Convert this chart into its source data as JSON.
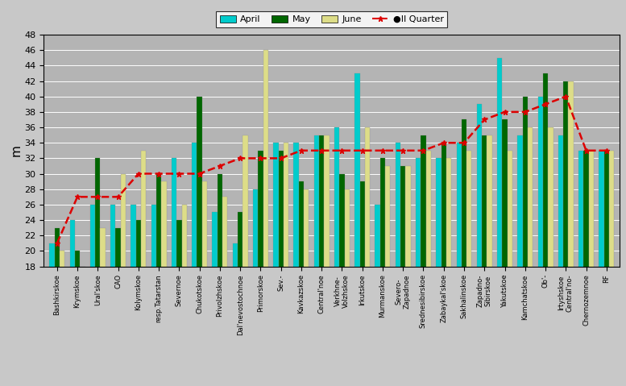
{
  "categories": [
    "Bashkirskoe",
    "Krymskoe",
    "Ural'skoe",
    "CAO",
    "Kolymskoe",
    "resp.Tatarstan",
    "Severnoe",
    "Chukotskoe",
    "Privolzhskoe",
    "Dal'nevostochnoe",
    "Primorskoe",
    "Sev.-",
    "Kavkazskoe",
    "Central'noe",
    "Verkhne-\nVolzhskoe",
    "Irkutskoe",
    "Murmanskoe",
    "Severo-\nZapadnoe",
    "Srednesibirskoe",
    "Zabaykal'skoe",
    "Sakhalinskoe",
    "Zapadno-\nSibirskoe",
    "Yakutskoe",
    "Kamchatskoe",
    "Ob'-",
    "Irtyshskoe\nCentral'no-",
    "Chernozemnoe",
    "RF"
  ],
  "april": [
    21,
    24,
    26,
    26,
    26,
    26,
    32,
    34,
    25,
    21,
    28,
    34,
    34,
    35,
    36,
    43,
    26,
    34,
    32,
    32,
    34,
    39,
    45,
    35,
    40,
    35,
    33,
    33
  ],
  "may": [
    23,
    20,
    32,
    23,
    24,
    30,
    24,
    40,
    30,
    25,
    33,
    33,
    29,
    35,
    30,
    29,
    32,
    31,
    35,
    34,
    37,
    35,
    37,
    40,
    43,
    42,
    33,
    33
  ],
  "june": [
    20,
    18,
    23,
    30,
    33,
    29,
    26,
    29,
    27,
    35,
    46,
    34,
    28,
    35,
    28,
    36,
    31,
    31,
    33,
    32,
    33,
    35,
    33,
    36,
    36,
    42,
    33,
    33
  ],
  "quarter": [
    21,
    27,
    27,
    27,
    30,
    30,
    30,
    30,
    31,
    32,
    32,
    32,
    33,
    33,
    33,
    33,
    33,
    33,
    33,
    34,
    34,
    37,
    38,
    38,
    39,
    40,
    33,
    33
  ],
  "bar_width": 0.25,
  "april_color": "#00CCCC",
  "may_color": "#006600",
  "june_color": "#DDDD88",
  "quarter_color": "#DD0000",
  "ylabel": "m",
  "ylim_min": 18,
  "ylim_max": 48,
  "yticks": [
    18,
    20,
    22,
    24,
    26,
    28,
    30,
    32,
    34,
    36,
    38,
    40,
    42,
    44,
    46,
    48
  ],
  "legend_labels": [
    "April",
    "May",
    "June",
    "●II Quarter"
  ]
}
